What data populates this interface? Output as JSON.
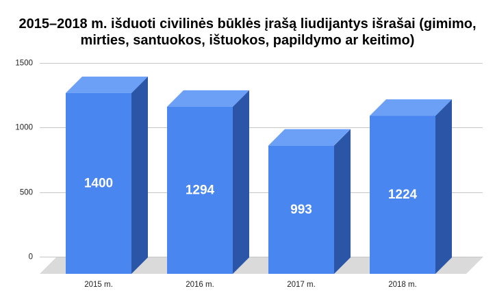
{
  "chart_data": {
    "type": "bar",
    "three_d": true,
    "title": "2015–2018 m. išduoti civilinės būklės įrašą liudijantys išrašai (gimimo, mirties, santuokos, ištuokos, papildymo ar keitimo)",
    "categories": [
      "2015 m.",
      "2016 m.",
      "2017 m.",
      "2018 m."
    ],
    "values": [
      1400,
      1294,
      993,
      1224
    ],
    "data_labels": true,
    "ylim": [
      0,
      1500
    ],
    "y_ticks": [
      0,
      500,
      1000,
      1500
    ],
    "grid": true,
    "legend": "none",
    "colors": {
      "bar_front": "#4a86f0",
      "bar_top": "#6c9ff6",
      "bar_side": "#2b56a8",
      "floor": "#dadada",
      "gridline": "#c6c6c6",
      "data_label": "#ffffff",
      "title": "#000000",
      "axis_label": "#222222"
    }
  }
}
